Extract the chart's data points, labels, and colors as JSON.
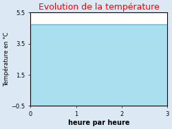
{
  "title": "Evolution de la température",
  "xlabel": "heure par heure",
  "ylabel": "Température en °C",
  "x_values": [
    0,
    3
  ],
  "y_values": [
    4.7,
    4.7
  ],
  "y_baseline": -0.5,
  "xlim": [
    0,
    3
  ],
  "ylim": [
    -0.5,
    5.5
  ],
  "yticks": [
    -0.5,
    1.5,
    3.5,
    5.5
  ],
  "xticks": [
    0,
    1,
    2,
    3
  ],
  "line_color": "#5bc8e8",
  "fill_color": "#aadff0",
  "background_color": "#dce9f5",
  "plot_bg_color": "#ffffff",
  "title_color": "#ff0000",
  "title_fontsize": 9,
  "xlabel_fontsize": 7,
  "ylabel_fontsize": 6,
  "tick_fontsize": 6,
  "line_width": 1.2
}
